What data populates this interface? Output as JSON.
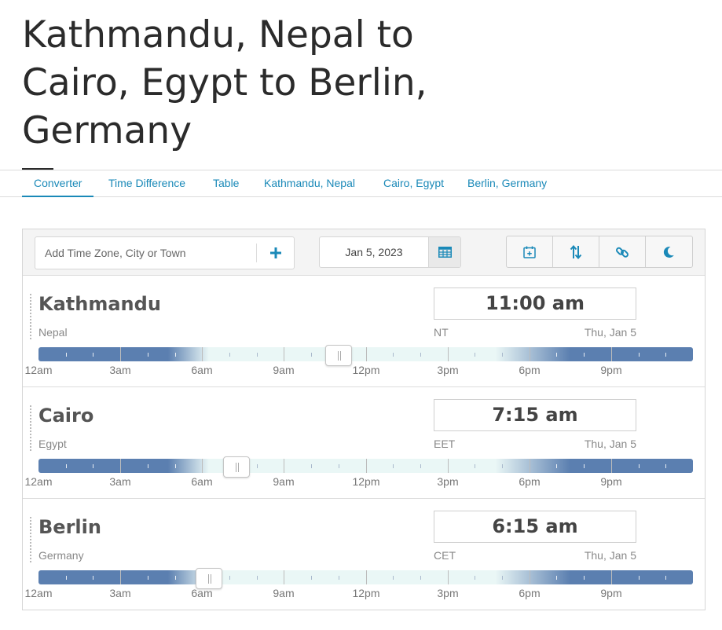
{
  "page": {
    "title": "Kathmandu, Nepal to Cairo, Egypt to Berlin, Germany"
  },
  "tabs": [
    {
      "label": "Converter",
      "active": true
    },
    {
      "label": "Time Difference"
    },
    {
      "label": "Table"
    },
    {
      "label": "Kathmandu, Nepal"
    },
    {
      "label": "Cairo, Egypt"
    },
    {
      "label": "Berlin, Germany"
    }
  ],
  "toolbar": {
    "search_placeholder": "Add Time Zone, City or Town",
    "add_icon": "plus-icon",
    "date": "Jan 5, 2023",
    "calendar_icon": "calendar-grid-icon",
    "buttons": [
      "calendar-add-icon",
      "sort-arrows-icon",
      "link-icon",
      "moon-icon"
    ]
  },
  "colors": {
    "accent": "#1a89b8",
    "night": "#5b7fb0",
    "day": "#eaf7f6"
  },
  "hour_labels": [
    "12am",
    "3am",
    "6am",
    "9am",
    "12pm",
    "3pm",
    "6pm",
    "9pm"
  ],
  "rows": [
    {
      "city": "Kathmandu",
      "country": "Nepal",
      "time": "11:00 am",
      "abbr": "NT",
      "date": "Thu, Jan 5",
      "hour": 11.0,
      "sunrise": 6.0,
      "sunset": 17.5
    },
    {
      "city": "Cairo",
      "country": "Egypt",
      "time": "7:15 am",
      "abbr": "EET",
      "date": "Thu, Jan 5",
      "hour": 7.25,
      "sunrise": 6.0,
      "sunset": 17.5
    },
    {
      "city": "Berlin",
      "country": "Germany",
      "time": "6:15 am",
      "abbr": "CET",
      "date": "Thu, Jan 5",
      "hour": 6.25,
      "sunrise": 6.0,
      "sunset": 17.5
    }
  ]
}
